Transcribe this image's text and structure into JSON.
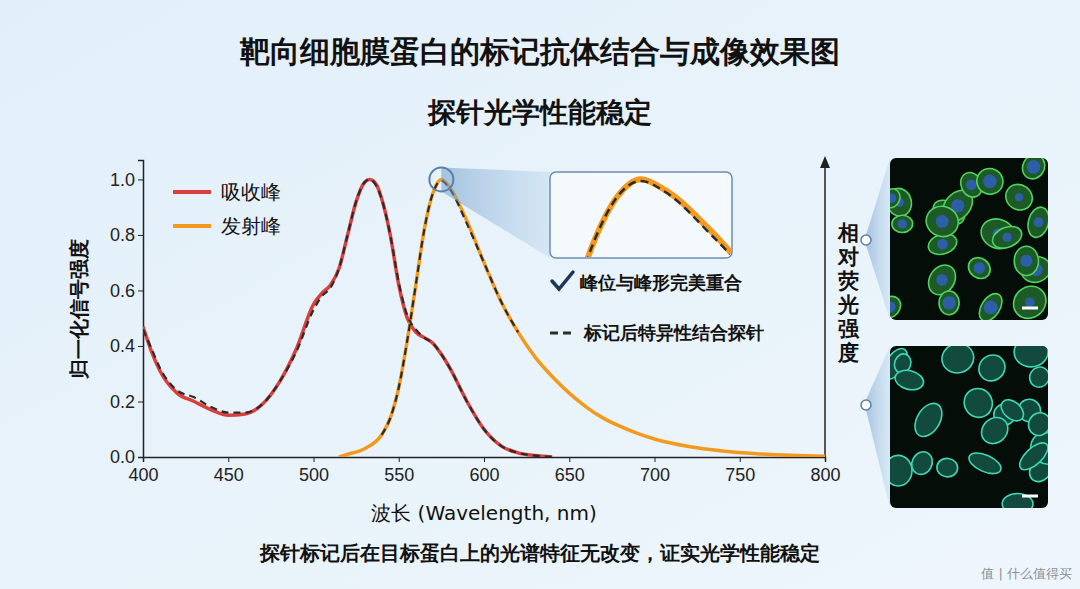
{
  "chart_data": {
    "type": "line",
    "title": "靶向细胞膜蛋白的标记抗体结合与成像效果图",
    "subtitle": "探针光学性能稳定",
    "x_label": "波长 (Wavelength, nm)",
    "y_label": "归一化信号强度",
    "right_axis_label": "相对荧光强度",
    "annotations": [
      "峰位与峰形完美重合"
    ],
    "caption": "探针标记后在目标蛋白上的光谱特征无改变，证实光学性能稳定",
    "watermark": "值 | 什么值得买",
    "xlim": [
      400,
      800
    ],
    "xticks": [
      400,
      450,
      500,
      550,
      600,
      650,
      700,
      750,
      800
    ],
    "ylim": [
      0,
      1.07
    ],
    "yticks": [
      {
        "value": 0,
        "label": "0.0"
      },
      0.2,
      0.4,
      0.6,
      0.8,
      {
        "value": 1,
        "label": "1.0"
      }
    ],
    "grid": false,
    "legend": "upper left",
    "inset": {
      "xlim": [
        556,
        594
      ],
      "ylim": [
        0.78,
        1.02
      ]
    },
    "series": [
      {
        "name": "吸收峰",
        "color": "#d9403d",
        "line_style": "solid",
        "x": [
          400,
          405,
          410,
          420,
          430,
          440,
          450,
          460,
          470,
          480,
          490,
          500,
          505,
          510,
          515,
          520,
          525,
          530,
          533,
          537,
          540,
          545,
          550,
          555,
          560,
          565,
          570,
          575,
          580,
          590,
          600,
          610,
          620,
          630,
          640
        ],
        "values": [
          0.47,
          0.38,
          0.31,
          0.23,
          0.2,
          0.17,
          0.15,
          0.155,
          0.19,
          0.27,
          0.39,
          0.55,
          0.59,
          0.62,
          0.68,
          0.8,
          0.92,
          0.99,
          1.0,
          0.98,
          0.93,
          0.8,
          0.62,
          0.5,
          0.45,
          0.43,
          0.41,
          0.37,
          0.32,
          0.2,
          0.1,
          0.04,
          0.015,
          0.005,
          0.0
        ]
      },
      {
        "name": "发射峰",
        "color": "#f39a1e",
        "line_style": "solid",
        "x": [
          515,
          520,
          530,
          540,
          545,
          550,
          555,
          560,
          565,
          570,
          575,
          580,
          590,
          600,
          610,
          620,
          630,
          640,
          650,
          660,
          670,
          680,
          690,
          700,
          720,
          740,
          760,
          780,
          800
        ],
        "values": [
          0.0,
          0.01,
          0.03,
          0.08,
          0.14,
          0.25,
          0.42,
          0.62,
          0.82,
          0.95,
          1.0,
          0.97,
          0.85,
          0.7,
          0.56,
          0.45,
          0.36,
          0.29,
          0.23,
          0.18,
          0.14,
          0.11,
          0.085,
          0.065,
          0.038,
          0.022,
          0.012,
          0.006,
          0.003
        ]
      },
      {
        "name": "标记后特异性结合探针",
        "color": "#2b2b2b",
        "line_style": "dashed",
        "x": [
          400,
          405,
          410,
          420,
          430,
          440,
          450,
          460,
          470,
          480,
          490,
          500,
          505,
          510,
          515,
          520,
          525,
          530,
          533,
          537,
          540,
          545,
          550,
          555,
          560,
          565,
          570,
          575,
          580,
          590,
          600,
          610,
          620,
          630,
          640,
          645,
          540,
          545,
          550,
          555,
          560,
          565,
          570,
          575,
          580,
          590,
          600,
          610,
          620
        ],
        "values": [
          0.46,
          0.39,
          0.32,
          0.24,
          0.215,
          0.18,
          0.16,
          0.16,
          0.19,
          0.27,
          0.38,
          0.53,
          0.58,
          0.61,
          0.68,
          0.8,
          0.92,
          0.99,
          1.0,
          0.975,
          0.93,
          0.8,
          0.63,
          0.51,
          0.46,
          0.43,
          0.41,
          0.37,
          0.32,
          0.2,
          0.1,
          0.04,
          0.015,
          0.005,
          0.0,
          null,
          0.08,
          0.14,
          0.25,
          0.42,
          0.62,
          0.82,
          0.95,
          0.995,
          0.965,
          0.84,
          0.7,
          0.56,
          0.45
        ]
      }
    ]
  }
}
